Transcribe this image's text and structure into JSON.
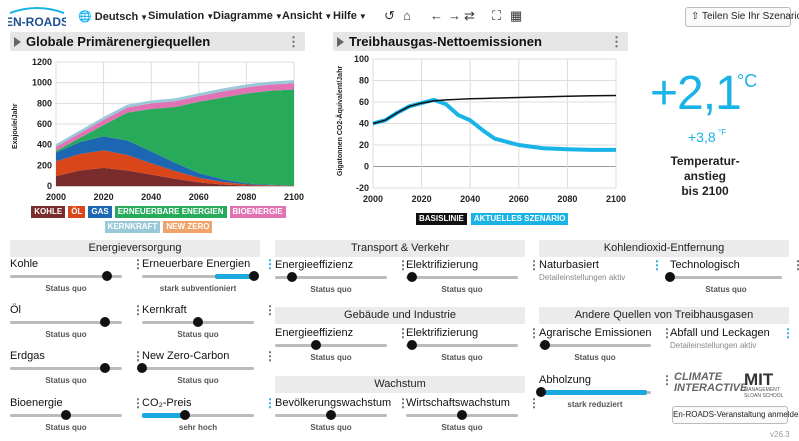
{
  "app": {
    "logo_text": "EN-ROADS",
    "version": "v26.3"
  },
  "menu": {
    "language": "Deutsch",
    "simulation": "Simulation",
    "graphs": "Diagramme",
    "view": "Ansicht",
    "help": "Hilfe",
    "share": "Teilen Sie Ihr Szenario"
  },
  "charts": {
    "energy": {
      "title": "Globale Primärenergiequellen"
    },
    "emissions": {
      "title": "Treibhausgas-Nettoemissionen"
    }
  },
  "chart_data": [
    {
      "type": "area",
      "title": "Globale Primärenergiequellen",
      "ylabel": "Exajoule/Jahr",
      "xlabel": "",
      "x": [
        2000,
        2010,
        2020,
        2030,
        2040,
        2050,
        2060,
        2070,
        2080,
        2090,
        2100
      ],
      "xticks": [
        2000,
        2020,
        2040,
        2060,
        2080,
        2100
      ],
      "yticks": [
        0,
        200,
        400,
        600,
        800,
        1000,
        1200
      ],
      "ylim": [
        0,
        1200
      ],
      "xlim": [
        2000,
        2100
      ],
      "series": [
        {
          "name": "KOHLE",
          "color": "#7a2b2b",
          "values": [
            95,
            150,
            175,
            150,
            110,
            70,
            35,
            15,
            5,
            2,
            0
          ]
        },
        {
          "name": "ÖL",
          "color": "#d9461a",
          "values": [
            145,
            160,
            170,
            150,
            110,
            75,
            45,
            25,
            10,
            5,
            2
          ]
        },
        {
          "name": "GAS",
          "color": "#1d66b2",
          "values": [
            85,
            115,
            135,
            140,
            115,
            80,
            45,
            25,
            10,
            5,
            2
          ]
        },
        {
          "name": "ERNEUERBARE ENERGIEN",
          "color": "#27ab5a",
          "values": [
            15,
            40,
            110,
            270,
            410,
            540,
            690,
            790,
            870,
            910,
            930
          ]
        },
        {
          "name": "BIOENERGIE",
          "color": "#e173b5",
          "values": [
            40,
            45,
            50,
            50,
            55,
            55,
            55,
            60,
            60,
            60,
            60
          ]
        },
        {
          "name": "KERNKRAFT",
          "color": "#99c9d8",
          "values": [
            25,
            27,
            28,
            28,
            28,
            28,
            28,
            28,
            28,
            28,
            30
          ]
        },
        {
          "name": "NEW ZERO",
          "color": "#f0a36a",
          "values": [
            0,
            0,
            0,
            0,
            0,
            0,
            0,
            0,
            0,
            0,
            0
          ]
        }
      ]
    },
    {
      "type": "line",
      "title": "Treibhausgas-Nettoemissionen",
      "ylabel": "Gigatonnen CO2-Äquivalent/Jahr",
      "xlabel": "",
      "x": [
        2000,
        2005,
        2010,
        2015,
        2020,
        2025,
        2030,
        2035,
        2040,
        2045,
        2050,
        2060,
        2070,
        2080,
        2090,
        2100
      ],
      "xticks": [
        2000,
        2020,
        2040,
        2060,
        2080,
        2100
      ],
      "yticks": [
        -20,
        0,
        20,
        40,
        60,
        80,
        100
      ],
      "ylim": [
        -20,
        100
      ],
      "xlim": [
        2000,
        2100
      ],
      "series": [
        {
          "name": "BASISLINIE",
          "color": "#111111",
          "values": [
            40,
            43,
            50,
            56,
            59,
            61,
            62,
            62.5,
            63,
            63.3,
            63.6,
            64.2,
            64.8,
            65.3,
            65.8,
            66
          ]
        },
        {
          "name": "AKTUELLES SZENARIO",
          "color": "#1ab3e6",
          "values": [
            40,
            43,
            50,
            56,
            59,
            62,
            58,
            48,
            43,
            34,
            26,
            20,
            17,
            16,
            15.5,
            15.5
          ]
        }
      ]
    }
  ],
  "temperature": {
    "value": "+2,1",
    "unit": "°C",
    "value_f": "+3,8",
    "unit_f": "°F",
    "label_line1": "Temperatur-",
    "label_line2": "anstieg",
    "label_line3": "bis 2100"
  },
  "sections": {
    "energy_supply": "Energieversorgung",
    "transport": "Transport & Verkehr",
    "cdr": "Kohlendioxid-Entfernung",
    "buildings": "Gebäude und Industrie",
    "other_ghg": "Andere Quellen von Treibhausgasen",
    "growth": "Wachstum"
  },
  "sliders": {
    "coal": {
      "label": "Kohle",
      "status": "Status quo",
      "value": 0.87
    },
    "renewables": {
      "label": "Erneuerbare Energien",
      "status": "stark subventioniert",
      "value": 1.0
    },
    "oil": {
      "label": "Öl",
      "status": "Status quo",
      "value": 0.85
    },
    "nuclear": {
      "label": "Kernkraft",
      "status": "Status quo",
      "value": 0.5
    },
    "gas": {
      "label": "Erdgas",
      "status": "Status quo",
      "value": 0.85
    },
    "new_zero": {
      "label": "New Zero-Carbon",
      "status": "Status quo",
      "value": 0.0
    },
    "bioenergy": {
      "label": "Bioenergie",
      "status": "Status quo",
      "value": 0.5
    },
    "carbon_price": {
      "label": "CO₂-Preis",
      "status": "sehr hoch",
      "value": 0.38
    },
    "transport_eff": {
      "label": "Energieeffizienz",
      "status": "Status quo",
      "value": 0.15
    },
    "transport_elec": {
      "label": "Elektrifizierung",
      "status": "Status quo",
      "value": 0.05
    },
    "build_eff": {
      "label": "Energieeffizienz",
      "status": "Status quo",
      "value": 0.37
    },
    "build_elec": {
      "label": "Elektrifizierung",
      "status": "Status quo",
      "value": 0.05
    },
    "population": {
      "label": "Bevölkerungswachstum",
      "status": "Status quo",
      "value": 0.5
    },
    "economic": {
      "label": "Wirtschaftswachstum",
      "status": "Status quo",
      "value": 0.5
    },
    "nature_cdr": {
      "label": "Naturbasiert",
      "note": "Detaileinstellungen aktiv"
    },
    "tech_cdr": {
      "label": "Technologisch",
      "status": "Status quo",
      "value": 0.0
    },
    "ag_emissions": {
      "label": "Agrarische Emissionen",
      "status": "Status quo",
      "value": 0.05
    },
    "waste_leak": {
      "label": "Abfall und Leckagen",
      "note": "Detaileinstellungen aktiv"
    },
    "deforestation": {
      "label": "Abholzung",
      "status": "stark reduziert",
      "value": 0.02
    }
  },
  "footer": {
    "climate_line1": "CLIMATE",
    "climate_line2": "INTERACTIVE",
    "mit": "MIT",
    "mit_sub1": "MANAGEMENT",
    "mit_sub2": "SLOAN SCHOOL",
    "register": "En-ROADS-Veranstaltung anmelden"
  }
}
